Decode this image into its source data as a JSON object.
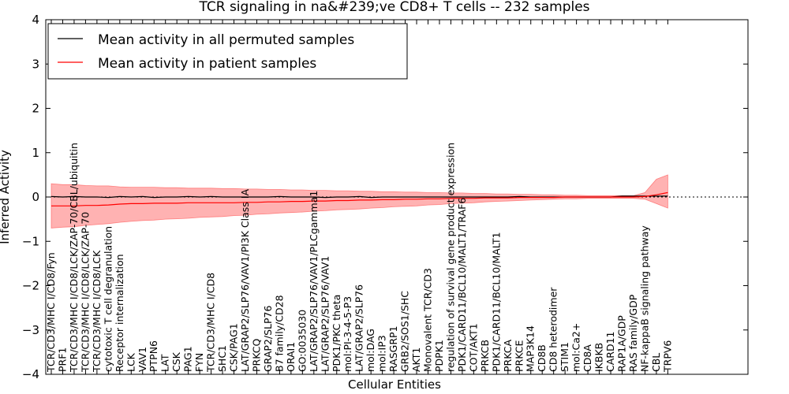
{
  "chart_data": {
    "type": "line",
    "title": "TCR signaling in na&#239;ve CD8+ T cells -- 232 samples",
    "xlabel": "Cellular Entities",
    "ylabel": "Inferred Activity",
    "ylim": [
      -4,
      4
    ],
    "yticks": [
      -4,
      -3,
      -2,
      -1,
      0,
      1,
      2,
      3,
      4
    ],
    "legend_position": "top-left",
    "categories": [
      "TCR/CD3/MHC I/CD8/Fyn",
      "PRF1",
      "TCR/CD3/MHC I/CD8/LCK/ZAP-70/CBL/ubiquitin",
      "TCR/CD3/MHC I/CD8/LCK/ZAP-70",
      "TCR/CD3/MHC I/CD8/LCK",
      "cytotoxic T cell degranulation",
      "Receptor internalization",
      "LCK",
      "VAV1",
      "PTPN6",
      "LAT",
      "CSK",
      "PAG1",
      "FYN",
      "TCR/CD3/MHC I/CD8",
      "SHC1",
      "CSK/PAG1",
      "LAT/GRAP2/SLP76/VAV1/PI3K Class IA",
      "PRKCQ",
      "GRAP2/SLP76",
      "B7 family/CD28",
      "ORAI1",
      "GO:0035030",
      "LAT/GRAP2/SLP76/VAV1/PLCgamma1",
      "LAT/GRAP2/SLP76/VAV1",
      "PDK1/PKC theta",
      "mol:PI-3-4-5-P3",
      "LAT/GRAP2/SLP76",
      "mol:DAG",
      "mol:IP3",
      "RASGRP1",
      "GRB2/SOS1/SHC",
      "AKT1",
      "Monovalent TCR/CD3",
      "PDPK1",
      "regulation of survival gene product expression",
      "PDK1/CARD11/BCL10/MALT1/TRAF6",
      "COT/AKT1",
      "PRKCB",
      "PDK1/CARD11/BCL10/MALT1",
      "PRKCA",
      "PRKCE",
      "MAP3K14",
      "CD8B",
      "CD8 heterodimer",
      "STIM1",
      "mol:Ca2+",
      "CD8A",
      "IKBKB",
      "CARD11",
      "RAP1A/GDP",
      "RAS family/GDP",
      "NF-kappaB signaling pathway",
      "CBL",
      "TRPV6"
    ],
    "series": [
      {
        "name": "Mean activity in all permuted samples",
        "color": "#000000",
        "values": [
          0.01,
          0.0,
          0.01,
          0.0,
          0.0,
          -0.01,
          0.01,
          0.0,
          0.01,
          -0.01,
          0.0,
          0.0,
          0.01,
          0.0,
          0.01,
          0.0,
          0.0,
          0.0,
          0.0,
          0.0,
          0.01,
          0.0,
          0.0,
          0.0,
          -0.01,
          0.0,
          0.0,
          0.01,
          -0.01,
          0.0,
          0.0,
          0.0,
          0.0,
          0.0,
          0.0,
          0.0,
          0.0,
          0.0,
          0.0,
          0.0,
          0.0,
          0.01,
          0.0,
          0.0,
          0.0,
          0.0,
          0.0,
          0.0,
          0.0,
          0.0,
          0.02,
          0.02,
          0.02,
          0.02,
          0.02
        ]
      },
      {
        "name": "Mean activity in patient samples",
        "color": "#ff0000",
        "values": [
          -0.2,
          -0.2,
          -0.2,
          -0.19,
          -0.19,
          -0.18,
          -0.16,
          -0.15,
          -0.15,
          -0.14,
          -0.14,
          -0.14,
          -0.13,
          -0.13,
          -0.13,
          -0.13,
          -0.13,
          -0.12,
          -0.12,
          -0.11,
          -0.11,
          -0.1,
          -0.1,
          -0.09,
          -0.09,
          -0.08,
          -0.08,
          -0.07,
          -0.07,
          -0.06,
          -0.06,
          -0.05,
          -0.05,
          -0.04,
          -0.04,
          -0.03,
          -0.03,
          -0.03,
          -0.02,
          -0.02,
          -0.02,
          -0.01,
          -0.01,
          -0.01,
          -0.01,
          0.0,
          0.0,
          0.0,
          0.0,
          0.0,
          0.0,
          0.0,
          0.01,
          0.05,
          0.1
        ],
        "band_upper": [
          0.3,
          0.28,
          0.28,
          0.26,
          0.25,
          0.25,
          0.23,
          0.22,
          0.22,
          0.22,
          0.21,
          0.21,
          0.2,
          0.2,
          0.2,
          0.19,
          0.19,
          0.18,
          0.18,
          0.17,
          0.17,
          0.16,
          0.16,
          0.15,
          0.15,
          0.14,
          0.14,
          0.13,
          0.13,
          0.12,
          0.12,
          0.11,
          0.11,
          0.1,
          0.1,
          0.09,
          0.09,
          0.08,
          0.08,
          0.07,
          0.07,
          0.06,
          0.06,
          0.05,
          0.05,
          0.04,
          0.04,
          0.03,
          0.03,
          0.03,
          0.03,
          0.03,
          0.1,
          0.4,
          0.5
        ],
        "band_lower": [
          -0.7,
          -0.68,
          -0.67,
          -0.64,
          -0.62,
          -0.6,
          -0.57,
          -0.55,
          -0.53,
          -0.52,
          -0.5,
          -0.49,
          -0.48,
          -0.46,
          -0.45,
          -0.44,
          -0.42,
          -0.41,
          -0.39,
          -0.38,
          -0.36,
          -0.35,
          -0.34,
          -0.32,
          -0.31,
          -0.29,
          -0.28,
          -0.27,
          -0.25,
          -0.24,
          -0.22,
          -0.21,
          -0.2,
          -0.18,
          -0.17,
          -0.15,
          -0.14,
          -0.13,
          -0.11,
          -0.1,
          -0.09,
          -0.08,
          -0.07,
          -0.06,
          -0.05,
          -0.04,
          -0.04,
          -0.03,
          -0.03,
          -0.03,
          -0.03,
          -0.03,
          -0.05,
          -0.15,
          -0.25
        ]
      }
    ]
  }
}
